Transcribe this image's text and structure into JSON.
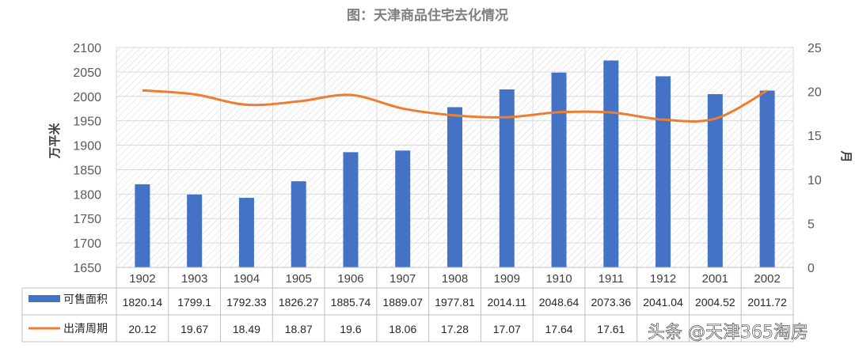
{
  "chart_data": {
    "type": "bar",
    "title": "图：天津商品住宅去化情况",
    "categories": [
      "1902",
      "1903",
      "1904",
      "1905",
      "1906",
      "1907",
      "1908",
      "1909",
      "1910",
      "1911",
      "1912",
      "2001",
      "2002"
    ],
    "series": [
      {
        "name": "可售面积",
        "type": "bar",
        "axis": "left",
        "color": "#4472c4",
        "values": [
          1820.14,
          1799.1,
          1792.33,
          1826.27,
          1885.74,
          1889.07,
          1977.81,
          2014.11,
          2048.64,
          2073.36,
          2041.04,
          2004.52,
          2011.72
        ],
        "display_values": [
          "1820.14",
          "1799.1",
          "1792.33",
          "1826.27",
          "1885.74",
          "1889.07",
          "1977.81",
          "2014.11",
          "2048.64",
          "2073.36",
          "2041.04",
          "2004.52",
          "2011.72"
        ]
      },
      {
        "name": "出清周期",
        "type": "line",
        "axis": "right",
        "color": "#ed7d31",
        "values": [
          20.12,
          19.67,
          18.49,
          18.87,
          19.6,
          18.06,
          17.28,
          17.07,
          17.64,
          17.61,
          16.8,
          16.9,
          20.1
        ],
        "display_values": [
          "20.12",
          "19.67",
          "18.49",
          "18.87",
          "19.6",
          "18.06",
          "17.28",
          "17.07",
          "17.64",
          "17.61",
          "",
          "",
          ""
        ]
      }
    ],
    "y_left": {
      "label": "万平米",
      "min": 1650,
      "max": 2100,
      "step": 50
    },
    "y_right": {
      "label": "月",
      "min": 0,
      "max": 25,
      "step": 5
    },
    "grid": true,
    "legend": "data-table",
    "watermark": "头条 @天津365淘房"
  }
}
